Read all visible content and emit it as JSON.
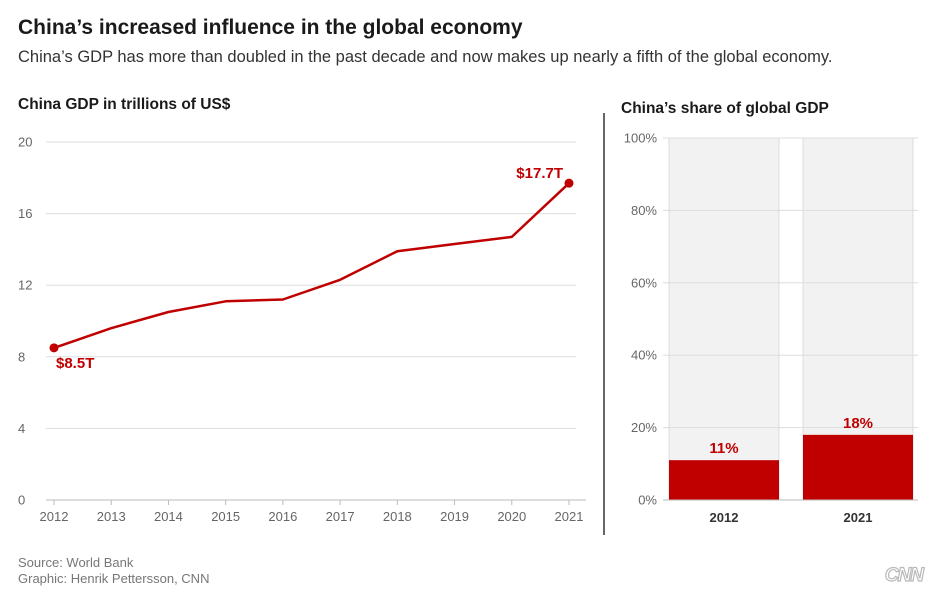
{
  "header": {
    "title": "China’s increased influence in the global economy",
    "subtitle": "China’s GDP has more than doubled in the past decade and now makes up nearly a fifth of the global economy."
  },
  "colors": {
    "accent": "#c00000",
    "grid": "#dddddd",
    "bar_background": "#f2f2f2",
    "axis": "#bbbbbb"
  },
  "chart_data": [
    {
      "type": "line",
      "title": "China GDP in trillions of US$",
      "x": [
        "2012",
        "2013",
        "2014",
        "2015",
        "2016",
        "2017",
        "2018",
        "2019",
        "2020",
        "2021"
      ],
      "series": [
        {
          "values": [
            8.5,
            9.6,
            10.5,
            11.1,
            11.2,
            12.3,
            13.9,
            14.3,
            14.7,
            17.7
          ]
        }
      ],
      "yticks": [
        "0",
        "4",
        "8",
        "12",
        "16",
        "20"
      ],
      "ylim": [
        0,
        20
      ],
      "grid": true,
      "annotations": [
        {
          "x": "2012",
          "label": "$8.5T"
        },
        {
          "x": "2021",
          "label": "$17.7T"
        }
      ]
    },
    {
      "type": "bar",
      "title": "China’s share of global GDP",
      "categories": [
        "2012",
        "2021"
      ],
      "values": [
        11,
        18
      ],
      "value_labels": [
        "11%",
        "18%"
      ],
      "yticks": [
        "0%",
        "20%",
        "40%",
        "60%",
        "80%",
        "100%"
      ],
      "ylim": [
        0,
        100
      ],
      "grid": true
    }
  ],
  "footer": {
    "source": "Source: World Bank",
    "credit": "Graphic: Henrik Pettersson, CNN",
    "logo": "CNN"
  }
}
